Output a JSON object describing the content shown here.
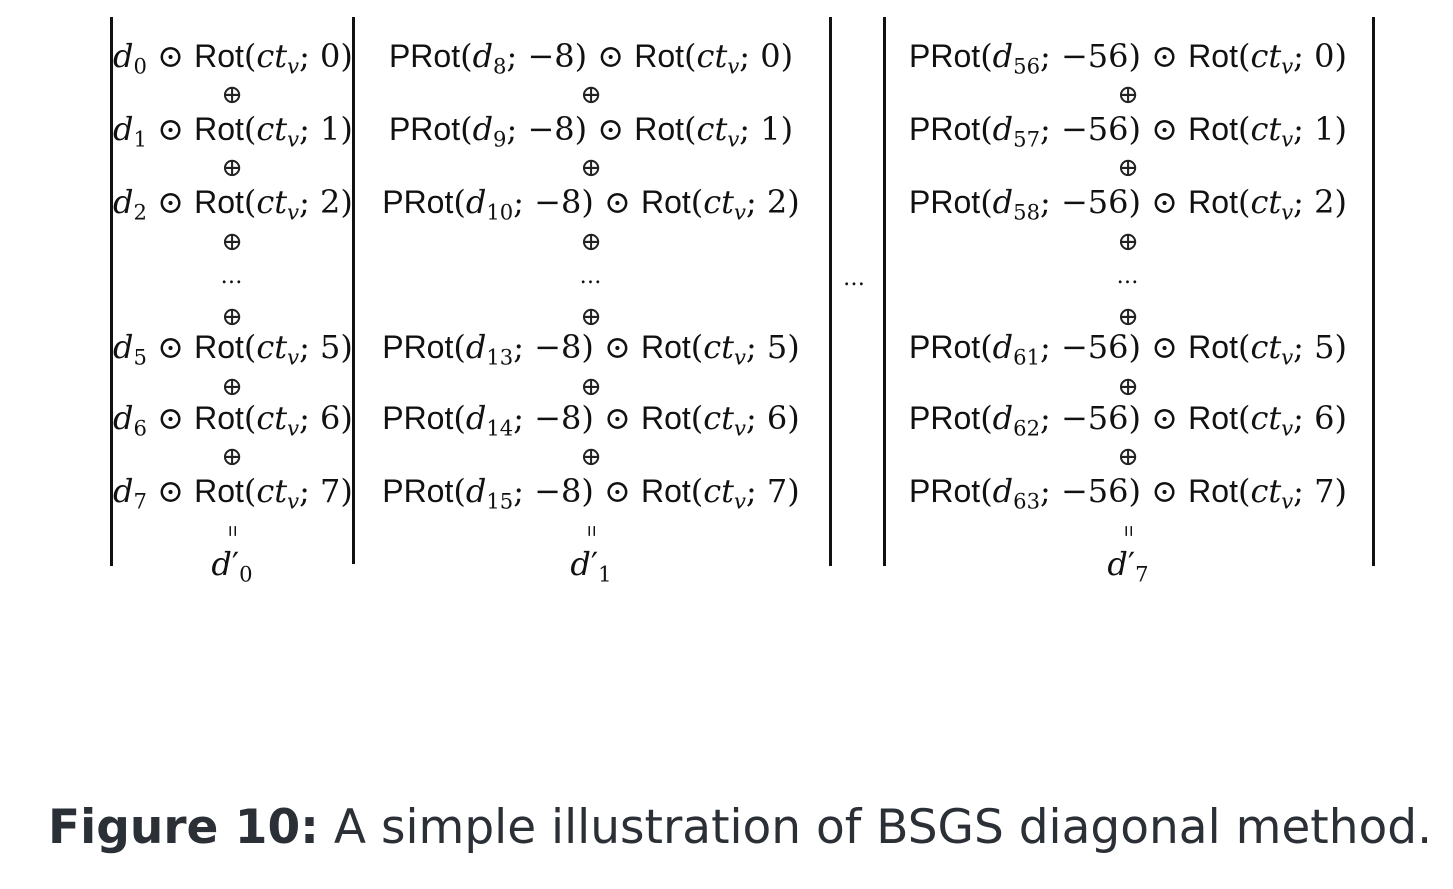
{
  "columns": [
    {
      "result": {
        "var": "d",
        "sub": "0"
      },
      "terms": [
        {
          "prot": null,
          "d_sub": "0",
          "k": "0"
        },
        {
          "prot": null,
          "d_sub": "1",
          "k": "1"
        },
        {
          "prot": null,
          "d_sub": "2",
          "k": "2"
        },
        {
          "prot": null,
          "d_sub": "5",
          "k": "5"
        },
        {
          "prot": null,
          "d_sub": "6",
          "k": "6"
        },
        {
          "prot": null,
          "d_sub": "7",
          "k": "7"
        }
      ]
    },
    {
      "result": {
        "var": "d",
        "sub": "1"
      },
      "terms": [
        {
          "prot": "−8",
          "d_sub": "8",
          "k": "0"
        },
        {
          "prot": "−8",
          "d_sub": "9",
          "k": "1"
        },
        {
          "prot": "−8",
          "d_sub": "10",
          "k": "2"
        },
        {
          "prot": "−8",
          "d_sub": "13",
          "k": "5"
        },
        {
          "prot": "−8",
          "d_sub": "14",
          "k": "6"
        },
        {
          "prot": "−8",
          "d_sub": "15",
          "k": "7"
        }
      ]
    },
    {
      "result": {
        "var": "d",
        "sub": "7"
      },
      "terms": [
        {
          "prot": "−56",
          "d_sub": "56",
          "k": "0"
        },
        {
          "prot": "−56",
          "d_sub": "57",
          "k": "1"
        },
        {
          "prot": "−56",
          "d_sub": "58",
          "k": "2"
        },
        {
          "prot": "−56",
          "d_sub": "61",
          "k": "5"
        },
        {
          "prot": "−56",
          "d_sub": "62",
          "k": "6"
        },
        {
          "prot": "−56",
          "d_sub": "63",
          "k": "7"
        }
      ]
    }
  ],
  "symbols": {
    "oplus": "⊕",
    "odot": "⊙",
    "ellipsis": "…",
    "equals": "=",
    "prime": "′",
    "rot": "Rot",
    "prot": "PRot",
    "ct": "ct",
    "v": "v"
  },
  "between_dots": "…",
  "caption": {
    "label": "Figure 10:",
    "text": " A simple illustration of BSGS diagonal method."
  }
}
